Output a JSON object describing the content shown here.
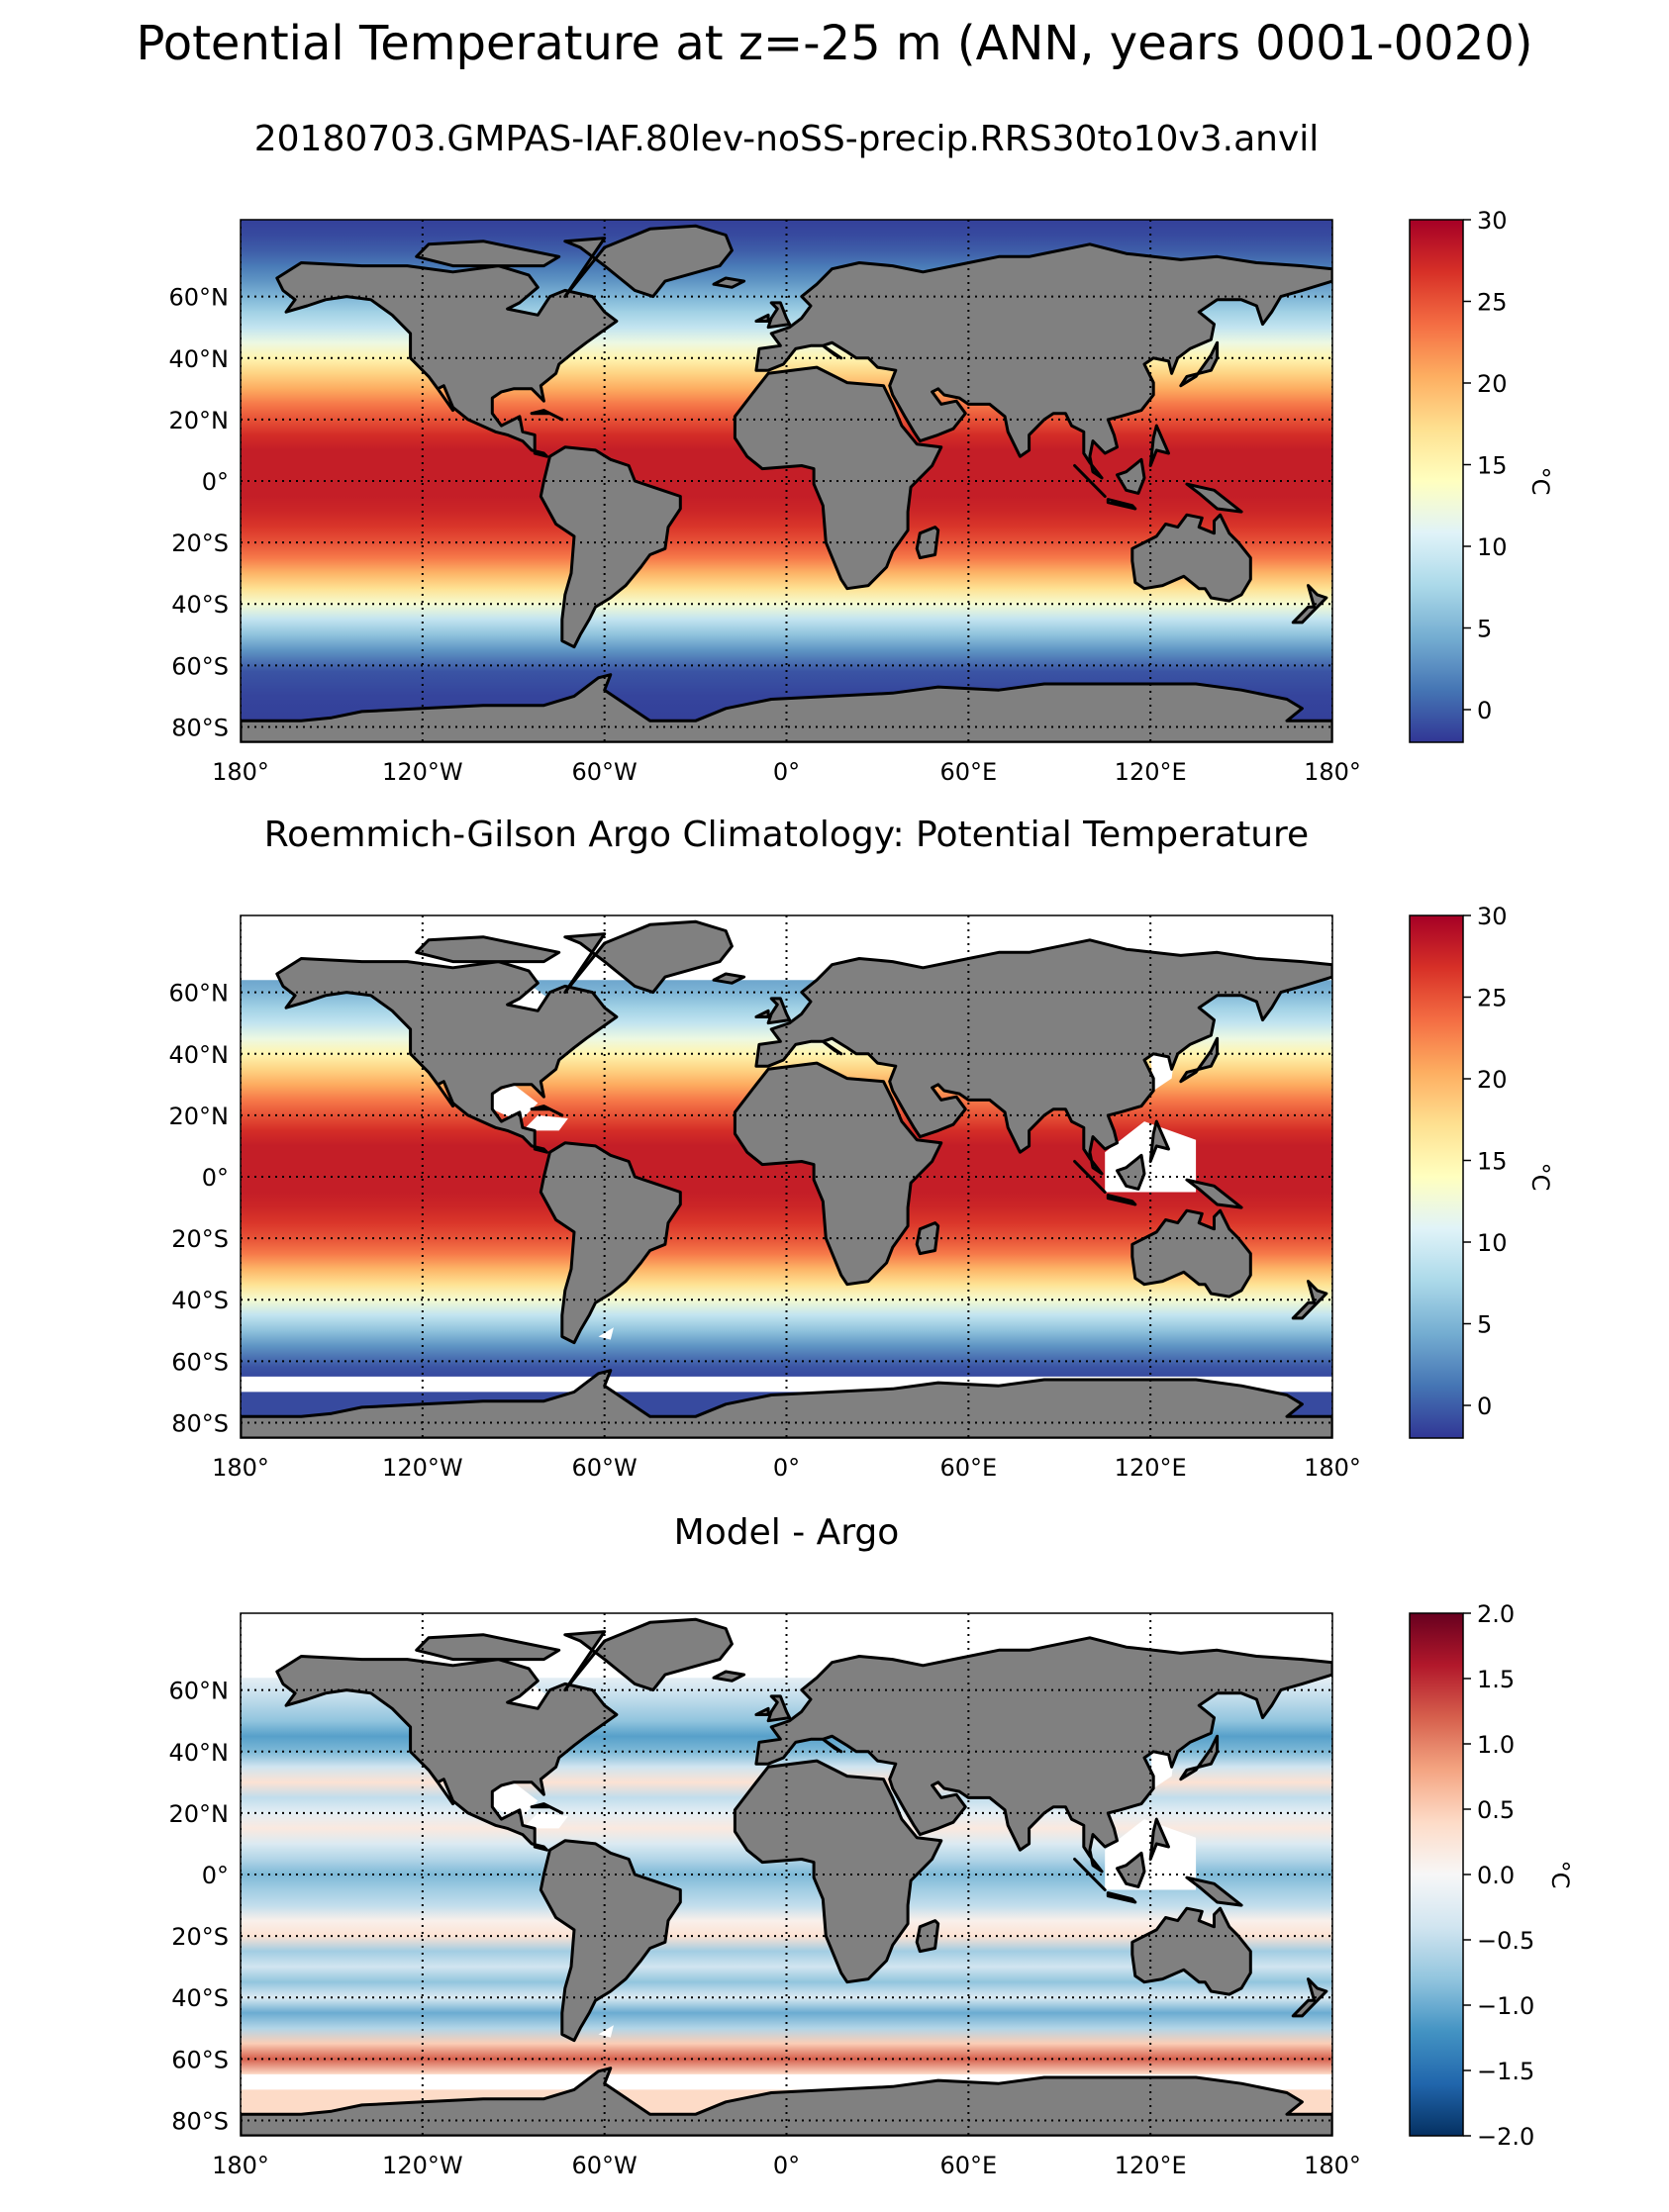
{
  "figure": {
    "suptitle": "Potential Temperature at z=-25 m (ANN, years 0001-0020)"
  },
  "chart_data": [
    {
      "type": "heatmap",
      "panel": "model",
      "title": "20180703.GMPAS-IAF.80lev-noSS-precip.RRS30to10v3.anvil",
      "projection": "equirectangular",
      "lon_range": [
        -180,
        180
      ],
      "lat_range": [
        -85,
        85
      ],
      "x_ticks": [
        -180,
        -120,
        -60,
        0,
        60,
        120,
        180
      ],
      "x_tick_labels": [
        "180°",
        "120°W",
        "60°W",
        "0°",
        "60°E",
        "120°E",
        "180°"
      ],
      "y_ticks": [
        -80,
        -60,
        -40,
        -20,
        0,
        20,
        40,
        60
      ],
      "y_tick_labels": [
        "80°S",
        "60°S",
        "40°S",
        "20°S",
        "0°",
        "20°N",
        "40°N",
        "60°N"
      ],
      "grid": true,
      "colormap": "RdYlBu_r",
      "colorbar": {
        "label": "°C",
        "range": [
          -2,
          30
        ],
        "ticks": [
          0,
          5,
          10,
          15,
          20,
          25,
          30
        ],
        "tick_labels": [
          "0",
          "5",
          "10",
          "15",
          "20",
          "25",
          "30"
        ]
      },
      "zonal_mean_profile": {
        "lat": [
          -85,
          -78,
          -70,
          -62,
          -55,
          -50,
          -45,
          -40,
          -35,
          -30,
          -25,
          -20,
          -15,
          -10,
          -5,
          0,
          5,
          10,
          15,
          20,
          25,
          30,
          35,
          40,
          45,
          50,
          55,
          60,
          65,
          70,
          75,
          80,
          85
        ],
        "temperature": [
          -1.5,
          -1.5,
          -1.3,
          -0.5,
          3,
          6,
          9,
          13,
          17,
          20,
          23,
          25,
          26.5,
          27.5,
          28,
          28,
          28,
          28,
          27,
          25,
          23,
          20.5,
          18,
          15,
          12,
          9,
          7,
          5,
          3,
          1.5,
          0,
          -1,
          -1.5
        ]
      },
      "land_color": "#808080",
      "missing_color": "#ffffff"
    },
    {
      "type": "heatmap",
      "panel": "observations",
      "title": "Roemmich-Gilson Argo Climatology: Potential Temperature",
      "projection": "equirectangular",
      "lon_range": [
        -180,
        180
      ],
      "lat_range": [
        -85,
        85
      ],
      "x_ticks": [
        -180,
        -120,
        -60,
        0,
        60,
        120,
        180
      ],
      "x_tick_labels": [
        "180°",
        "120°W",
        "60°W",
        "0°",
        "60°E",
        "120°E",
        "180°"
      ],
      "y_ticks": [
        -80,
        -60,
        -40,
        -20,
        0,
        20,
        40,
        60
      ],
      "y_tick_labels": [
        "80°S",
        "60°S",
        "40°S",
        "20°S",
        "0°",
        "20°N",
        "40°N",
        "60°N"
      ],
      "grid": true,
      "colormap": "RdYlBu_r",
      "colorbar": {
        "label": "°C",
        "range": [
          -2,
          30
        ],
        "ticks": [
          0,
          5,
          10,
          15,
          20,
          25,
          30
        ],
        "tick_labels": [
          "0",
          "5",
          "10",
          "15",
          "20",
          "25",
          "30"
        ]
      },
      "valid_lat_range": [
        -65,
        64
      ],
      "zonal_mean_profile": {
        "lat": [
          -65,
          -62,
          -55,
          -50,
          -45,
          -40,
          -35,
          -30,
          -25,
          -20,
          -15,
          -10,
          -5,
          0,
          5,
          10,
          15,
          20,
          25,
          30,
          35,
          40,
          45,
          50,
          55,
          60,
          64
        ],
        "temperature": [
          -1,
          -0.5,
          3,
          6,
          9,
          13,
          17,
          20,
          23,
          25,
          26.5,
          27.5,
          28,
          28,
          28,
          28,
          27,
          25,
          23,
          20.5,
          18,
          15,
          12,
          9,
          7,
          5,
          4
        ]
      },
      "land_color": "#808080",
      "missing_color": "#ffffff"
    },
    {
      "type": "heatmap",
      "panel": "difference",
      "title": "Model - Argo",
      "projection": "equirectangular",
      "lon_range": [
        -180,
        180
      ],
      "lat_range": [
        -85,
        85
      ],
      "x_ticks": [
        -180,
        -120,
        -60,
        0,
        60,
        120,
        180
      ],
      "x_tick_labels": [
        "180°",
        "120°W",
        "60°W",
        "0°",
        "60°E",
        "120°E",
        "180°"
      ],
      "y_ticks": [
        -80,
        -60,
        -40,
        -20,
        0,
        20,
        40,
        60
      ],
      "y_tick_labels": [
        "80°S",
        "60°S",
        "40°S",
        "20°S",
        "0°",
        "20°N",
        "40°N",
        "60°N"
      ],
      "grid": true,
      "colormap": "RdBu_r",
      "colorbar": {
        "label": "°C",
        "range": [
          -2,
          2
        ],
        "ticks": [
          -2,
          -1.5,
          -1,
          -0.5,
          0,
          0.5,
          1,
          1.5,
          2
        ],
        "tick_labels": [
          "−2.0",
          "−1.5",
          "−1.0",
          "−0.5",
          "0.0",
          "0.5",
          "1.0",
          "1.5",
          "2.0"
        ]
      },
      "valid_lat_range": [
        -65,
        64
      ],
      "zonal_mean_profile": {
        "lat": [
          -65,
          -60,
          -55,
          -50,
          -45,
          -40,
          -35,
          -30,
          -25,
          -20,
          -15,
          -10,
          -5,
          0,
          5,
          10,
          15,
          20,
          25,
          30,
          35,
          40,
          45,
          50,
          55,
          60,
          64
        ],
        "difference": [
          0.4,
          1.2,
          0.5,
          -0.6,
          -1.0,
          -0.3,
          -0.8,
          -0.4,
          -0.7,
          0.3,
          0.1,
          -0.5,
          -0.7,
          -0.9,
          -0.6,
          -0.3,
          0.2,
          -0.2,
          -0.5,
          0.3,
          -0.4,
          -0.9,
          -1.1,
          -0.8,
          -0.6,
          -0.4,
          -0.2
        ]
      },
      "land_color": "#808080",
      "missing_color": "#ffffff"
    }
  ]
}
